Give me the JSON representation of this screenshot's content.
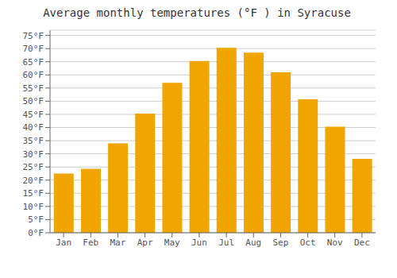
{
  "chart_data": {
    "type": "bar",
    "title": "Average monthly temperatures (°F ) in Syracuse",
    "categories": [
      "Jan",
      "Feb",
      "Mar",
      "Apr",
      "May",
      "Jun",
      "Jul",
      "Aug",
      "Sep",
      "Oct",
      "Nov",
      "Dec"
    ],
    "values": [
      22.5,
      24.3,
      34.0,
      45.3,
      57.0,
      65.3,
      70.3,
      68.5,
      61.0,
      50.7,
      40.3,
      28.1
    ],
    "color": "#F0A500",
    "ylim": [
      0,
      77
    ],
    "yticks": [
      {
        "value": 0,
        "label": "0°F"
      },
      {
        "value": 5,
        "label": "5°F"
      },
      {
        "value": 10,
        "label": "10°F"
      },
      {
        "value": 15,
        "label": "15°F"
      },
      {
        "value": 20,
        "label": "20°F"
      },
      {
        "value": 25,
        "label": "25°F"
      },
      {
        "value": 30,
        "label": "30°F"
      },
      {
        "value": 35,
        "label": "35°F"
      },
      {
        "value": 40,
        "label": "40°F"
      },
      {
        "value": 45,
        "label": "45°F"
      },
      {
        "value": 50,
        "label": "50°F"
      },
      {
        "value": 55,
        "label": "55°F"
      },
      {
        "value": 60,
        "label": "60°F"
      },
      {
        "value": 65,
        "label": "65°F"
      },
      {
        "value": 70,
        "label": "70°F"
      },
      {
        "value": 75,
        "label": "75°F"
      }
    ],
    "grid": true
  }
}
